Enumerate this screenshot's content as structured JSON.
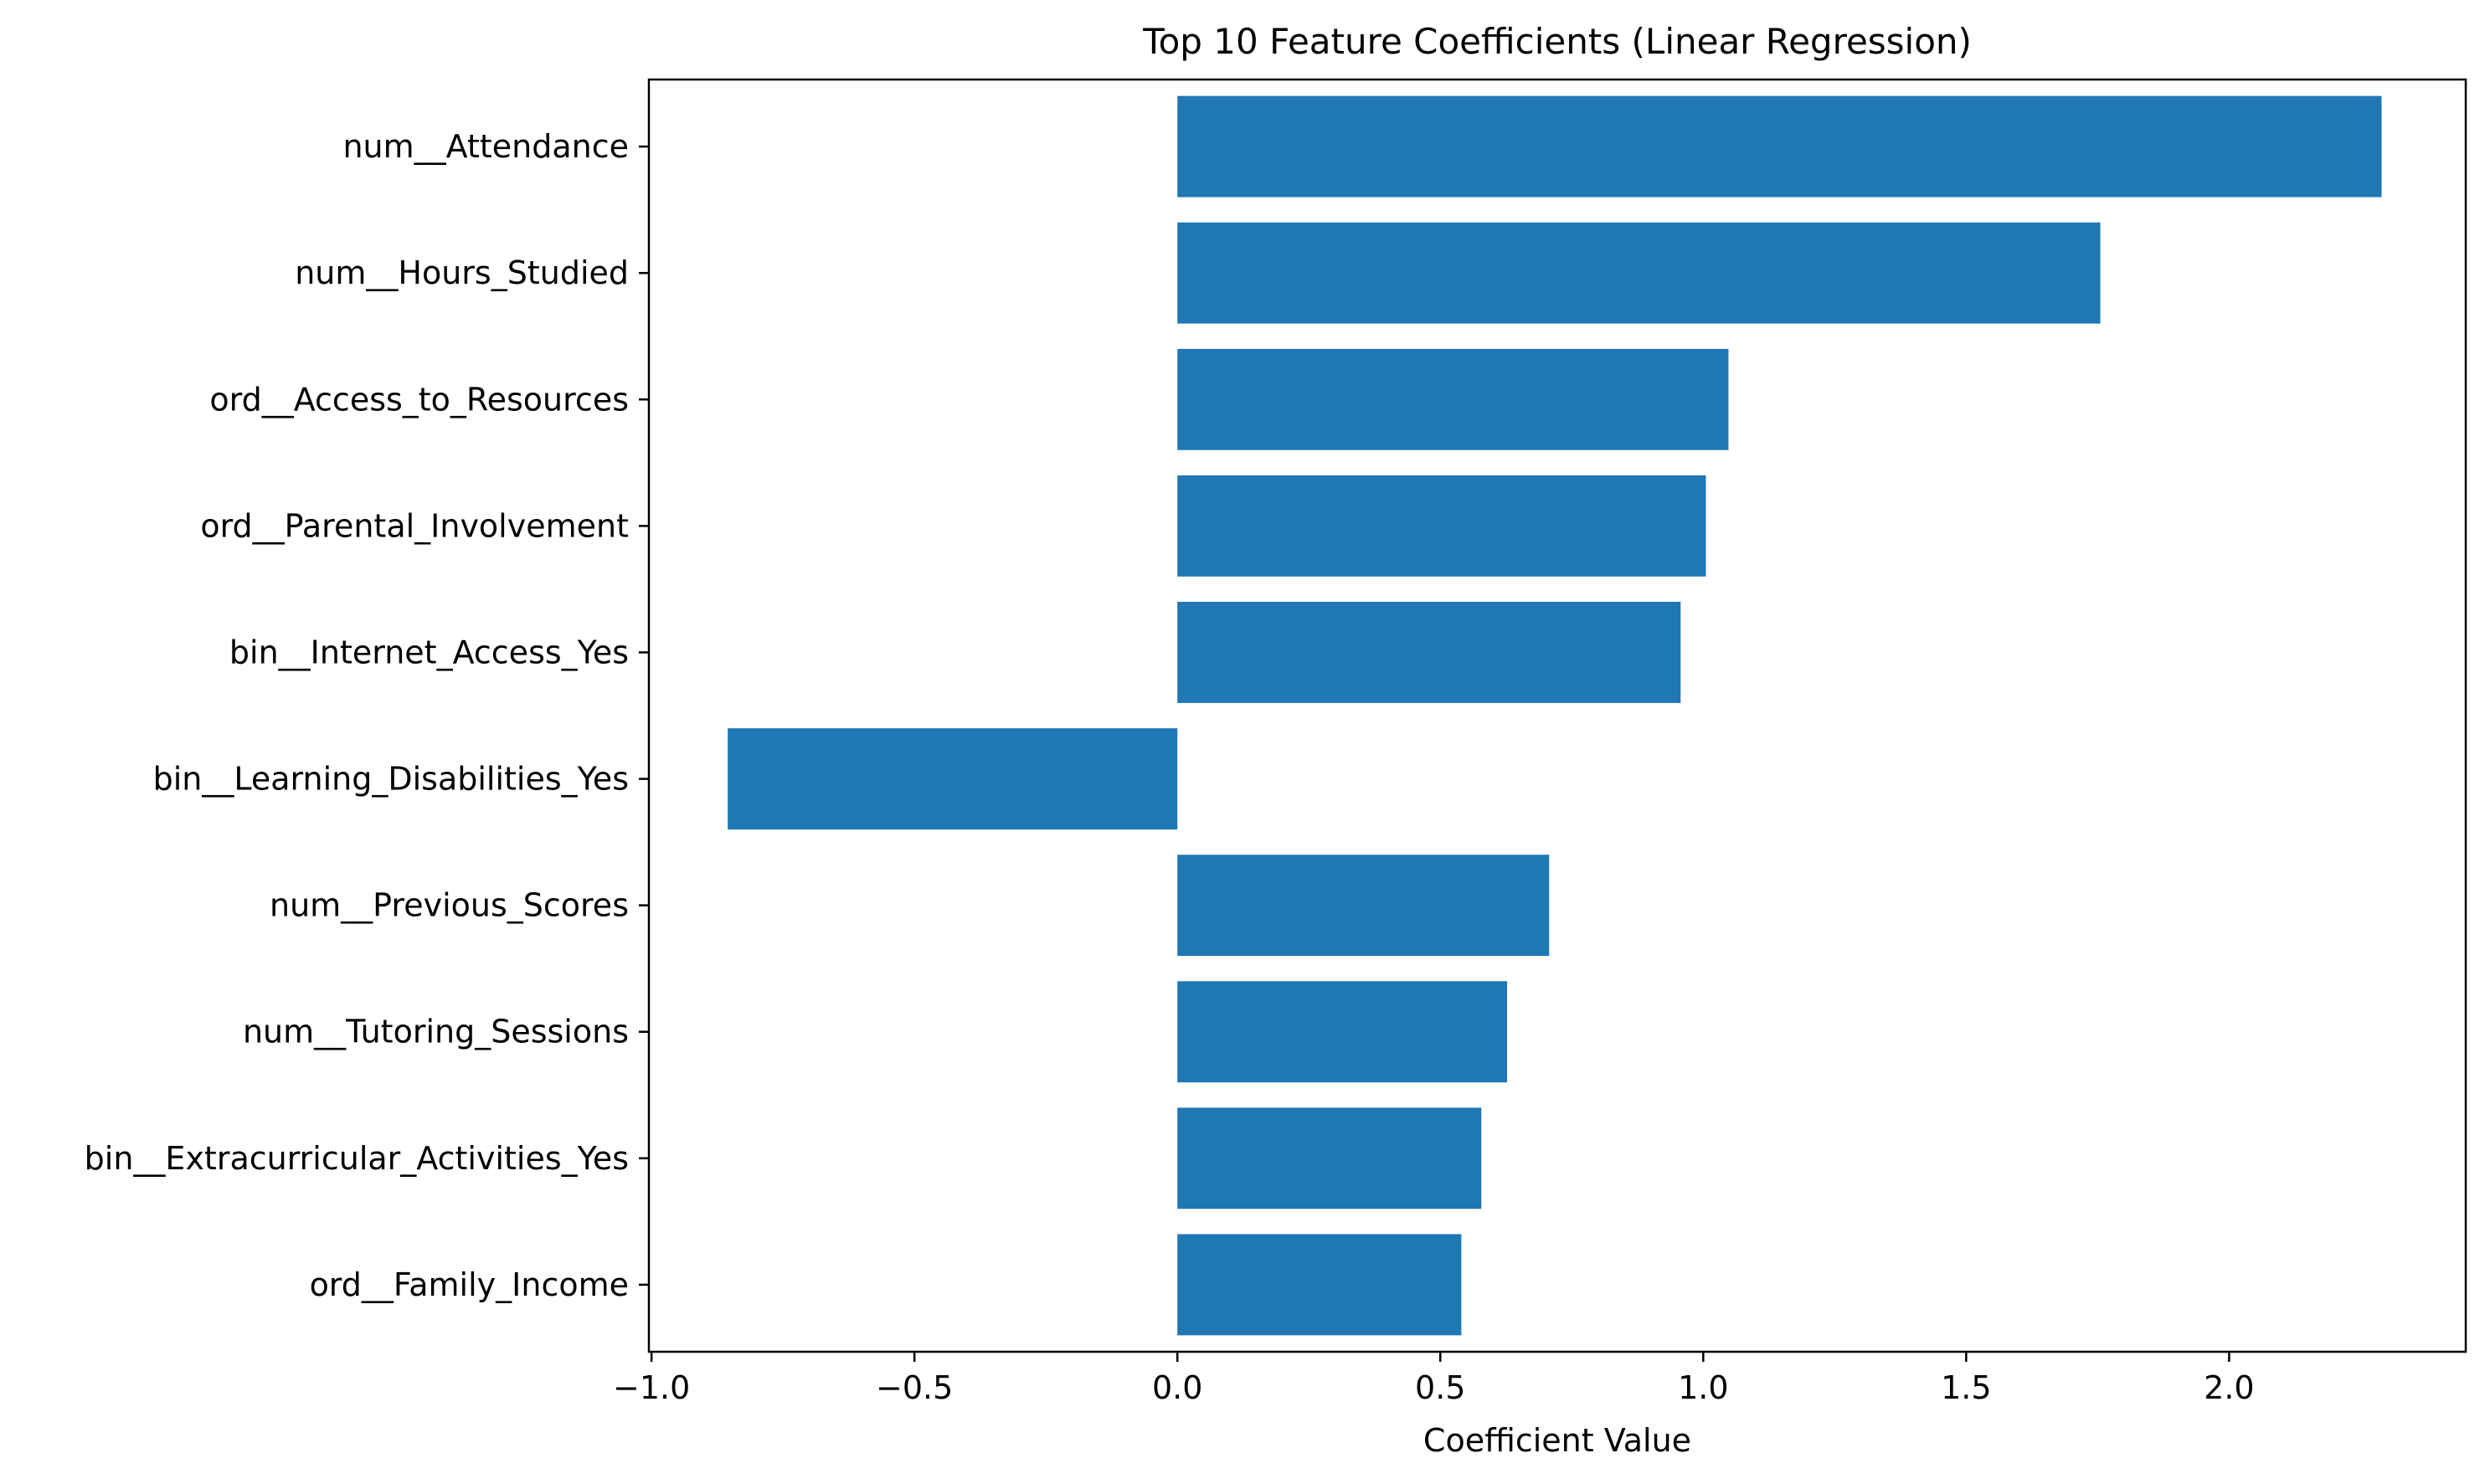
{
  "chart_data": {
    "type": "bar",
    "orientation": "horizontal",
    "title": "Top 10 Feature Coefficients (Linear Regression)",
    "xlabel": "Coefficient Value",
    "ylabel": "",
    "categories": [
      "num__Attendance",
      "num__Hours_Studied",
      "ord__Access_to_Resources",
      "ord__Parental_Involvement",
      "bin__Internet_Access_Yes",
      "bin__Learning_Disabilities_Yes",
      "num__Previous_Scores",
      "num__Tutoring_Sessions",
      "bin__Extracurricular_Activities_Yes",
      "ord__Family_Income"
    ],
    "values": [
      2.29,
      1.755,
      1.048,
      1.005,
      0.957,
      -0.855,
      0.707,
      0.627,
      0.578,
      0.54
    ],
    "xlim": [
      -1.005,
      2.45
    ],
    "xticks": [
      -1.0,
      -0.5,
      0.0,
      0.5,
      1.0,
      1.5,
      2.0
    ],
    "xtick_labels": [
      "−1.0",
      "−0.5",
      "0.0",
      "0.5",
      "1.0",
      "1.5",
      "2.0"
    ],
    "grid": false,
    "bar_color": "#1f77b4"
  }
}
